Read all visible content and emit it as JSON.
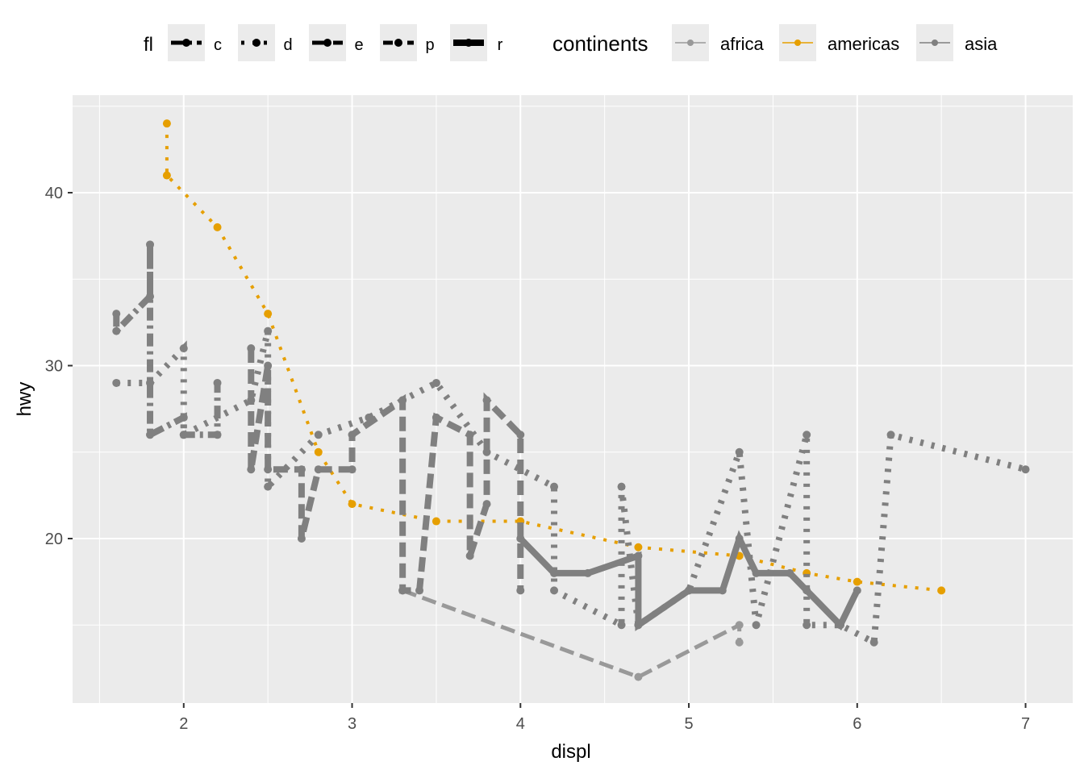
{
  "chart_data": {
    "type": "line",
    "xlabel": "displ",
    "ylabel": "hwy",
    "xlim": [
      1.34,
      7.28
    ],
    "ylim": [
      10.49,
      45.64
    ],
    "xticks": [
      2,
      3,
      4,
      5,
      6,
      7
    ],
    "yticks": [
      20,
      30,
      40
    ],
    "grid": true,
    "legend_position": "top",
    "legend_fl": {
      "title": "fl",
      "entries": [
        "c",
        "d",
        "e",
        "p",
        "r"
      ]
    },
    "legend_continents": {
      "title": "continents",
      "entries": [
        "africa",
        "americas",
        "asia"
      ]
    },
    "colors": {
      "africa": "#999999",
      "americas": "#E69F00",
      "asia": "#808080"
    },
    "series": [
      {
        "name": "americas",
        "fl": "d",
        "points": [
          [
            1.9,
            44
          ],
          [
            1.9,
            41
          ],
          [
            2.2,
            38
          ],
          [
            2.5,
            33
          ],
          [
            2.8,
            25
          ],
          [
            3.0,
            22
          ],
          [
            3.5,
            21
          ],
          [
            4.0,
            21
          ],
          [
            4.7,
            19.5
          ],
          [
            5.3,
            19
          ],
          [
            5.7,
            18
          ],
          [
            6.0,
            17.5
          ],
          [
            6.5,
            17
          ]
        ]
      },
      {
        "name": "africa",
        "fl": "e",
        "points": [
          [
            3.3,
            17
          ],
          [
            4.7,
            12
          ],
          [
            5.3,
            15
          ],
          [
            5.3,
            14
          ]
        ]
      },
      {
        "name": "asia",
        "fl": "c",
        "points": [
          [
            1.6,
            33
          ],
          [
            1.6,
            32
          ],
          [
            1.8,
            34
          ],
          [
            1.8,
            37
          ],
          [
            1.8,
            26
          ],
          [
            2.0,
            27
          ],
          [
            2.0,
            26
          ],
          [
            2.2,
            26
          ],
          [
            2.2,
            29
          ]
        ]
      },
      {
        "name": "asia",
        "fl": "e",
        "points": [
          [
            2.4,
            31
          ],
          [
            2.4,
            24
          ],
          [
            2.5,
            30
          ],
          [
            2.5,
            24
          ],
          [
            2.7,
            24
          ],
          [
            2.7,
            20
          ],
          [
            2.8,
            24
          ],
          [
            3.0,
            24
          ],
          [
            3.0,
            26
          ],
          [
            3.3,
            28
          ],
          [
            3.3,
            17
          ],
          [
            3.4,
            17
          ],
          [
            3.5,
            27
          ],
          [
            3.7,
            26
          ],
          [
            3.7,
            19
          ],
          [
            3.8,
            22
          ],
          [
            3.8,
            28
          ],
          [
            4.0,
            26
          ],
          [
            4.0,
            17
          ]
        ]
      },
      {
        "name": "asia",
        "fl": "d",
        "points": [
          [
            1.6,
            29
          ],
          [
            1.8,
            29
          ],
          [
            2.0,
            31
          ],
          [
            2.0,
            26
          ],
          [
            2.4,
            28
          ],
          [
            2.5,
            32
          ],
          [
            2.5,
            23
          ],
          [
            2.8,
            26
          ],
          [
            3.1,
            27
          ],
          [
            3.5,
            29
          ],
          [
            3.8,
            25
          ],
          [
            4.2,
            23
          ],
          [
            4.2,
            17
          ],
          [
            4.6,
            15
          ],
          [
            4.6,
            23
          ],
          [
            4.7,
            15
          ],
          [
            5.0,
            17
          ],
          [
            5.3,
            25
          ],
          [
            5.4,
            15
          ],
          [
            5.7,
            26
          ],
          [
            5.7,
            15
          ],
          [
            5.9,
            15
          ],
          [
            6.1,
            14
          ],
          [
            6.2,
            26
          ],
          [
            7.0,
            24
          ]
        ]
      },
      {
        "name": "asia",
        "fl": "r",
        "points": [
          [
            4.0,
            20
          ],
          [
            4.2,
            18
          ],
          [
            4.4,
            18
          ],
          [
            4.7,
            19
          ],
          [
            4.7,
            15
          ],
          [
            5.0,
            17
          ],
          [
            5.2,
            17
          ],
          [
            5.3,
            20
          ],
          [
            5.4,
            18
          ],
          [
            5.6,
            18
          ],
          [
            5.7,
            17
          ],
          [
            5.9,
            15
          ],
          [
            6.0,
            17
          ]
        ]
      }
    ]
  }
}
